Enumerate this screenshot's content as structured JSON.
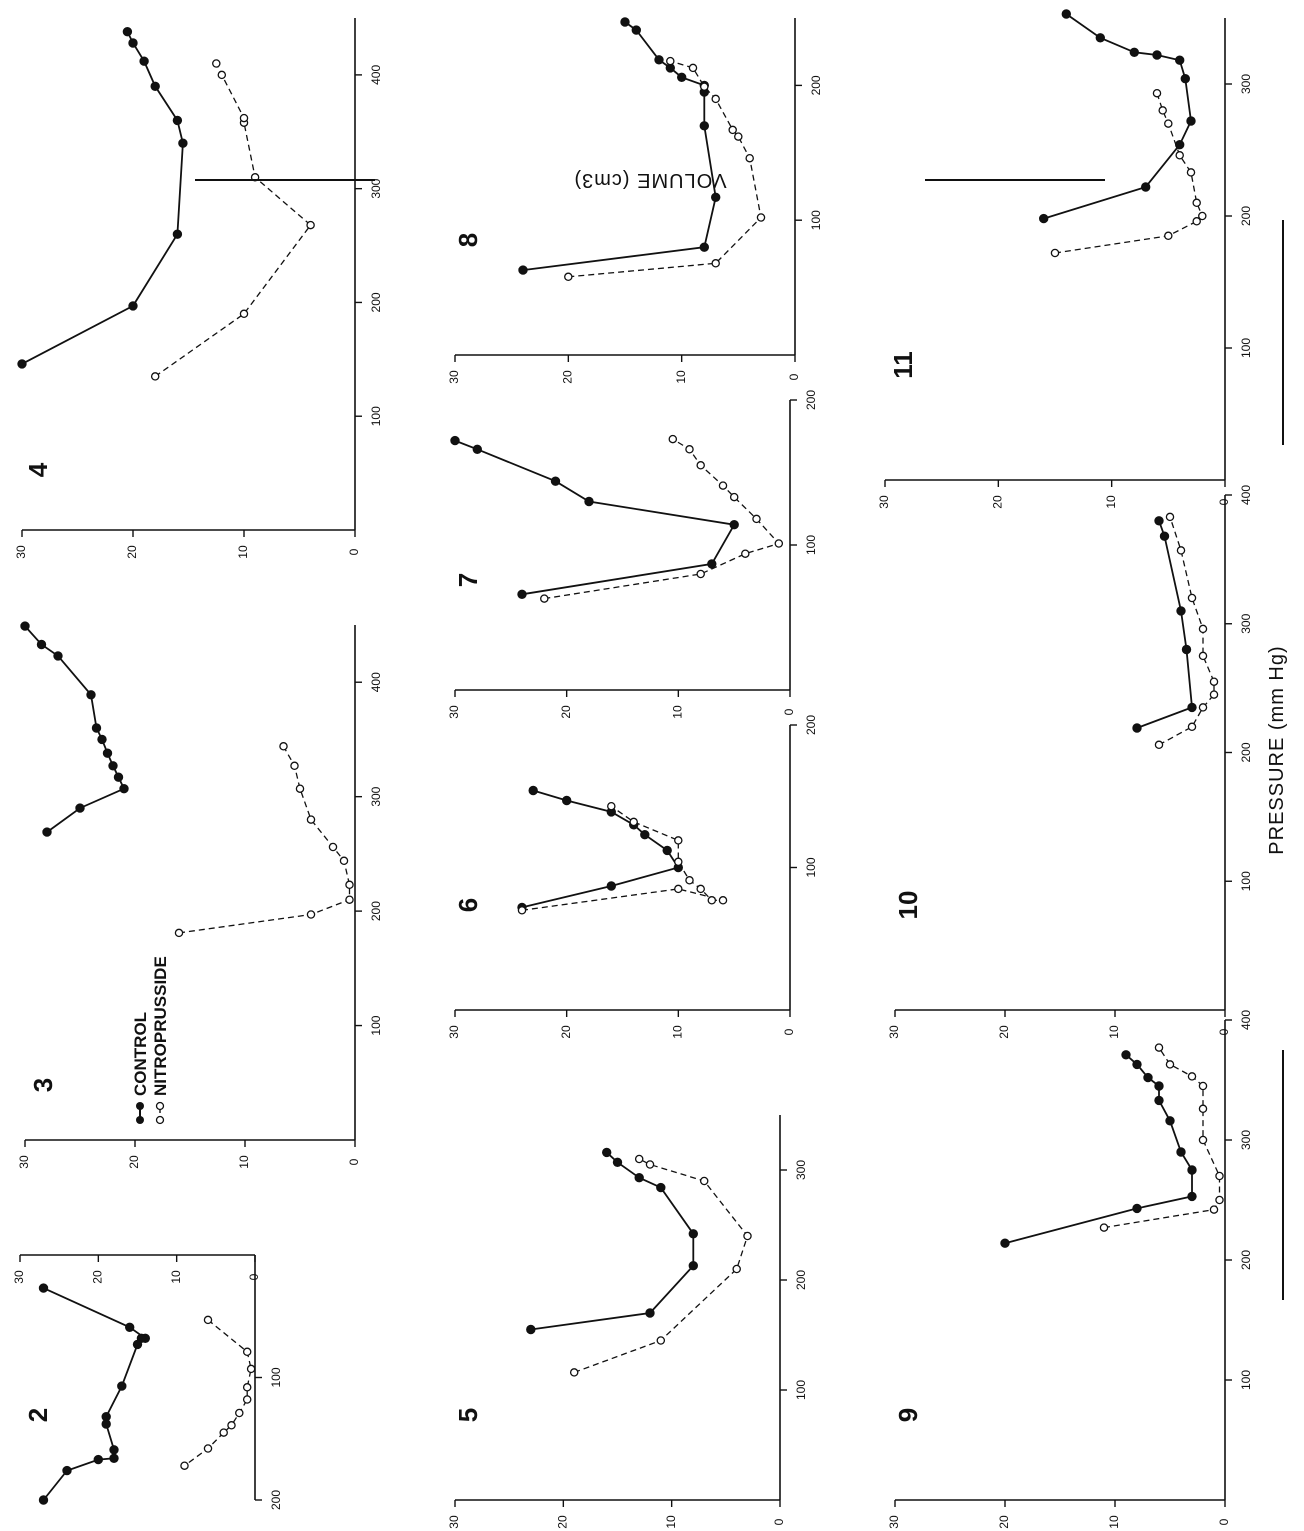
{
  "figure": {
    "y_axis_title": "PRESSURE (mm Hg)",
    "x_axis_title": "VOLUME (cm3)"
  },
  "legend": {
    "control_label": "CONTROL",
    "nitroprusside_label": "NITROPRUSSIDE"
  },
  "chart_data": [
    {
      "type": "line",
      "panel": "2",
      "xlabel": "VOLUME (cm3)",
      "ylabel": "PRESSURE (mm Hg)",
      "xlim": [
        0,
        200
      ],
      "ylim": [
        0,
        30
      ],
      "xticks": [
        100,
        200
      ],
      "yticks": [
        0,
        10,
        20,
        30
      ],
      "series": [
        {
          "name": "CONTROL",
          "points": [
            [
              27,
              27
            ],
            [
              59,
              16
            ],
            [
              68,
              14
            ],
            [
              68,
              14.5
            ],
            [
              73,
              15
            ],
            [
              107,
              17
            ],
            [
              132,
              19
            ],
            [
              138,
              19
            ],
            [
              159,
              18
            ],
            [
              166,
              18
            ],
            [
              167,
              20
            ],
            [
              176,
              24
            ],
            [
              200,
              27
            ]
          ]
        },
        {
          "name": "NITROPRUSSIDE",
          "points": [
            [
              53,
              6
            ],
            [
              79,
              1
            ],
            [
              93,
              0.5
            ],
            [
              108,
              1
            ],
            [
              118,
              1
            ],
            [
              129,
              2
            ],
            [
              139,
              3
            ],
            [
              145,
              4
            ],
            [
              158,
              6
            ],
            [
              172,
              9
            ]
          ]
        }
      ]
    },
    {
      "type": "line",
      "panel": "3",
      "xlabel": "VOLUME (cm3)",
      "ylabel": "PRESSURE (mm Hg)",
      "xlim": [
        0,
        450
      ],
      "ylim": [
        0,
        30
      ],
      "xticks": [
        100,
        200,
        300,
        400
      ],
      "yticks": [
        0,
        10,
        20,
        30
      ],
      "series": [
        {
          "name": "CONTROL",
          "points": [
            [
              269,
              28
            ],
            [
              290,
              25
            ],
            [
              307,
              21
            ],
            [
              317,
              21.5
            ],
            [
              327,
              22
            ],
            [
              338,
              22.5
            ],
            [
              350,
              23
            ],
            [
              360,
              23.5
            ],
            [
              389,
              24
            ],
            [
              423,
              27
            ],
            [
              433,
              28.5
            ],
            [
              449,
              30
            ]
          ]
        },
        {
          "name": "NITROPRUSSIDE",
          "points": [
            [
              181,
              16
            ],
            [
              197,
              4
            ],
            [
              210,
              0.5
            ],
            [
              223,
              0.5
            ],
            [
              244,
              1
            ],
            [
              256,
              2
            ],
            [
              280,
              4
            ],
            [
              307,
              5
            ],
            [
              327,
              5.5
            ],
            [
              344,
              6.5
            ]
          ]
        }
      ]
    },
    {
      "type": "line",
      "panel": "4",
      "xlabel": "VOLUME (cm3)",
      "ylabel": "PRESSURE (mm Hg)",
      "xlim": [
        0,
        450
      ],
      "ylim": [
        0,
        30
      ],
      "xticks": [
        100,
        200,
        300,
        400
      ],
      "yticks": [
        0,
        10,
        20,
        30
      ],
      "series": [
        {
          "name": "CONTROL",
          "points": [
            [
              146,
              30
            ],
            [
              197,
              20
            ],
            [
              260,
              16
            ],
            [
              340,
              15.5
            ],
            [
              360,
              16
            ],
            [
              390,
              18
            ],
            [
              412,
              19
            ],
            [
              428,
              20
            ],
            [
              438,
              20.5
            ]
          ]
        },
        {
          "name": "NITROPRUSSIDE",
          "points": [
            [
              135,
              18
            ],
            [
              190,
              10
            ],
            [
              268,
              4
            ],
            [
              310,
              9
            ],
            [
              358,
              10
            ],
            [
              362,
              10
            ],
            [
              400,
              12
            ],
            [
              410,
              12.5
            ]
          ]
        }
      ]
    },
    {
      "type": "line",
      "panel": "5",
      "xlabel": "VOLUME (cm3)",
      "ylabel": "PRESSURE (mm Hg)",
      "xlim": [
        0,
        350
      ],
      "ylim": [
        0,
        30
      ],
      "xticks": [
        100,
        200,
        300
      ],
      "yticks": [
        0,
        10,
        20,
        30
      ],
      "series": [
        {
          "name": "CONTROL",
          "points": [
            [
              155,
              23
            ],
            [
              170,
              12
            ],
            [
              213,
              8
            ],
            [
              242,
              8
            ],
            [
              284,
              11
            ],
            [
              293,
              13
            ],
            [
              307,
              15
            ],
            [
              316,
              16
            ]
          ]
        },
        {
          "name": "NITROPRUSSIDE",
          "points": [
            [
              116,
              19
            ],
            [
              145,
              11
            ],
            [
              210,
              4
            ],
            [
              240,
              3
            ],
            [
              290,
              7
            ],
            [
              305,
              12
            ],
            [
              310,
              13
            ]
          ]
        }
      ]
    },
    {
      "type": "line",
      "panel": "6",
      "xlabel": "VOLUME (cm3)",
      "ylabel": "PRESSURE (mm Hg)",
      "xlim": [
        0,
        200
      ],
      "ylim": [
        0,
        30
      ],
      "xticks": [
        100,
        200
      ],
      "yticks": [
        0,
        10,
        20,
        30
      ],
      "series": [
        {
          "name": "CONTROL",
          "points": [
            [
              72,
              24
            ],
            [
              87,
              16
            ],
            [
              100,
              10
            ],
            [
              112,
              11
            ],
            [
              123,
              13
            ],
            [
              130,
              14
            ],
            [
              139,
              16
            ],
            [
              147,
              20
            ],
            [
              154,
              23
            ]
          ]
        },
        {
          "name": "NITROPRUSSIDE",
          "points": [
            [
              70,
              24
            ],
            [
              85,
              10
            ],
            [
              77,
              6
            ],
            [
              77,
              7
            ],
            [
              85,
              8
            ],
            [
              91,
              9
            ],
            [
              104,
              10
            ],
            [
              119,
              10
            ],
            [
              132,
              14
            ],
            [
              143,
              16
            ]
          ]
        }
      ]
    },
    {
      "type": "line",
      "panel": "7",
      "xlabel": "VOLUME (cm3)",
      "ylabel": "PRESSURE (mm Hg)",
      "xlim": [
        0,
        200
      ],
      "ylim": [
        0,
        30
      ],
      "xticks": [
        100,
        200
      ],
      "yticks": [
        0,
        10,
        20,
        30
      ],
      "series": [
        {
          "name": "CONTROL",
          "points": [
            [
              66,
              24
            ],
            [
              87,
              7
            ],
            [
              114,
              5
            ],
            [
              130,
              18
            ],
            [
              144,
              21
            ],
            [
              166,
              28
            ],
            [
              172,
              30
            ]
          ]
        },
        {
          "name": "NITROPRUSSIDE",
          "points": [
            [
              63,
              22
            ],
            [
              80,
              8
            ],
            [
              94,
              4
            ],
            [
              101,
              1
            ],
            [
              118,
              3
            ],
            [
              133,
              5
            ],
            [
              141,
              6
            ],
            [
              155,
              8
            ],
            [
              166,
              9
            ],
            [
              173,
              10.5
            ]
          ]
        }
      ]
    },
    {
      "type": "line",
      "panel": "8",
      "xlabel": "VOLUME (cm3)",
      "ylabel": "PRESSURE (mm Hg)",
      "xlim": [
        0,
        250
      ],
      "ylim": [
        0,
        30
      ],
      "xticks": [
        100,
        200
      ],
      "yticks": [
        0,
        10,
        20,
        30
      ],
      "series": [
        {
          "name": "CONTROL",
          "points": [
            [
              63,
              24
            ],
            [
              80,
              8
            ],
            [
              117,
              7
            ],
            [
              170,
              8
            ],
            [
              195,
              8
            ],
            [
              200,
              8
            ],
            [
              206,
              10
            ],
            [
              213,
              11
            ],
            [
              219,
              12
            ],
            [
              241,
              14
            ],
            [
              247,
              15
            ]
          ]
        },
        {
          "name": "NITROPRUSSIDE",
          "points": [
            [
              58,
              20
            ],
            [
              68,
              7
            ],
            [
              102,
              3
            ],
            [
              146,
              4
            ],
            [
              162,
              5
            ],
            [
              167,
              5.5
            ],
            [
              190,
              7
            ],
            [
              199,
              8
            ],
            [
              213,
              9
            ],
            [
              218,
              11
            ]
          ]
        }
      ]
    },
    {
      "type": "line",
      "panel": "9",
      "xlabel": "VOLUME (cm3)",
      "ylabel": "PRESSURE (mm Hg)",
      "xlim": [
        0,
        400
      ],
      "ylim": [
        0,
        30
      ],
      "xticks": [
        100,
        200,
        300,
        400
      ],
      "yticks": [
        0,
        10,
        20,
        30
      ],
      "series": [
        {
          "name": "CONTROL",
          "points": [
            [
              214,
              20
            ],
            [
              243,
              8
            ],
            [
              253,
              3
            ],
            [
              275,
              3
            ],
            [
              290,
              4
            ],
            [
              316,
              5
            ],
            [
              333,
              6
            ],
            [
              345,
              6
            ],
            [
              352,
              7
            ],
            [
              363,
              8
            ],
            [
              371,
              9
            ]
          ]
        },
        {
          "name": "NITROPRUSSIDE",
          "points": [
            [
              227,
              11
            ],
            [
              242,
              1
            ],
            [
              250,
              0.5
            ],
            [
              270,
              0.5
            ],
            [
              300,
              2
            ],
            [
              326,
              2
            ],
            [
              345,
              2
            ],
            [
              353,
              3
            ],
            [
              363,
              5
            ],
            [
              377,
              6
            ]
          ]
        }
      ]
    },
    {
      "type": "line",
      "panel": "10",
      "xlabel": "VOLUME (cm3)",
      "ylabel": "PRESSURE (mm Hg)",
      "xlim": [
        0,
        400
      ],
      "ylim": [
        0,
        30
      ],
      "xticks": [
        100,
        200,
        300,
        400
      ],
      "yticks": [
        0,
        10,
        20,
        30
      ],
      "series": [
        {
          "name": "CONTROL",
          "points": [
            [
              219,
              8
            ],
            [
              235,
              3
            ],
            [
              280,
              3.5
            ],
            [
              310,
              4
            ],
            [
              368,
              5.5
            ],
            [
              380,
              6
            ]
          ]
        },
        {
          "name": "NITROPRUSSIDE",
          "points": [
            [
              206,
              6
            ],
            [
              220,
              3
            ],
            [
              235,
              2
            ],
            [
              245,
              1
            ],
            [
              255,
              1
            ],
            [
              275,
              2
            ],
            [
              296,
              2
            ],
            [
              320,
              3
            ],
            [
              357,
              4
            ],
            [
              383,
              5
            ]
          ]
        }
      ]
    },
    {
      "type": "line",
      "panel": "11",
      "xlabel": "VOLUME (cm3)",
      "ylabel": "PRESSURE (mm Hg)",
      "xlim": [
        0,
        350
      ],
      "ylim": [
        0,
        30
      ],
      "xticks": [
        100,
        200,
        300
      ],
      "yticks": [
        0,
        10,
        20,
        30
      ],
      "series": [
        {
          "name": "CONTROL",
          "points": [
            [
              198,
              16
            ],
            [
              222,
              7
            ],
            [
              254,
              4
            ],
            [
              272,
              3
            ],
            [
              304,
              3.5
            ],
            [
              318,
              4
            ],
            [
              322,
              6
            ],
            [
              324,
              8
            ],
            [
              335,
              11
            ],
            [
              353,
              14
            ]
          ]
        },
        {
          "name": "NITROPRUSSIDE",
          "points": [
            [
              172,
              15
            ],
            [
              185,
              5
            ],
            [
              196,
              2.5
            ],
            [
              200,
              2
            ],
            [
              210,
              2.5
            ],
            [
              233,
              3
            ],
            [
              246,
              4
            ],
            [
              270,
              5
            ],
            [
              280,
              5.5
            ],
            [
              293,
              6
            ]
          ]
        }
      ]
    }
  ]
}
